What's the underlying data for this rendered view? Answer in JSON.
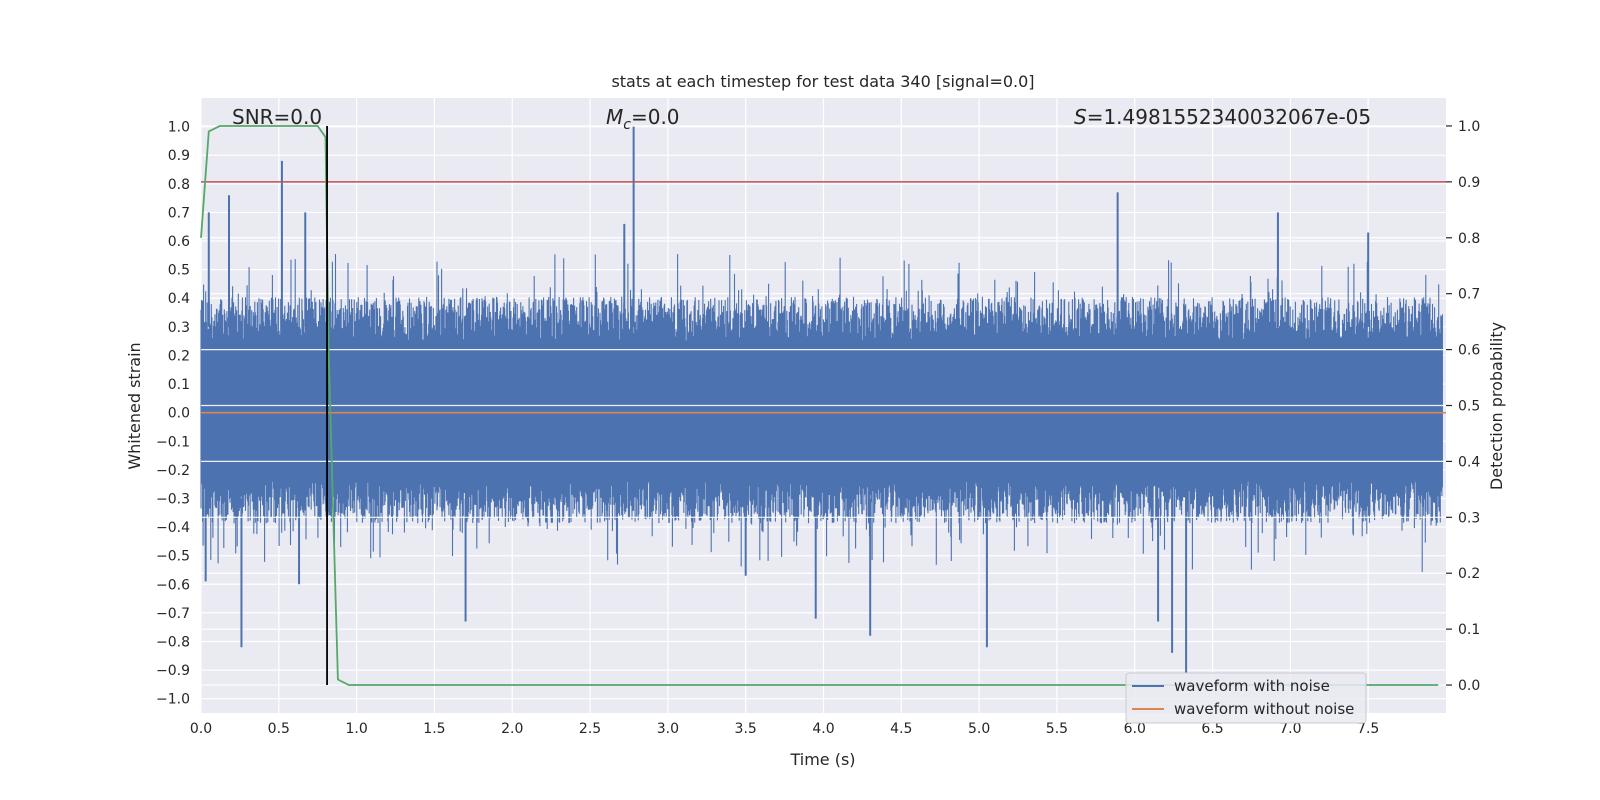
{
  "chart_data": {
    "type": "line",
    "title": "stats at each timestep for test data 340 [signal=0.0]",
    "xlabel": "Time (s)",
    "ylabel": "Whitened strain",
    "ylabel_right": "Detection probability",
    "xlim": [
      0.0,
      8.0
    ],
    "ylim": [
      -1.05,
      1.1
    ],
    "ylim_right": [
      -0.05,
      1.05
    ],
    "xticks": [
      0.0,
      0.5,
      1.0,
      1.5,
      2.0,
      2.5,
      3.0,
      3.5,
      4.0,
      4.5,
      5.0,
      5.5,
      6.0,
      6.5,
      7.0,
      7.5
    ],
    "xtick_labels": [
      "0.0",
      "0.5",
      "1.0",
      "1.5",
      "2.0",
      "2.5",
      "3.0",
      "3.5",
      "4.0",
      "4.5",
      "5.0",
      "5.5",
      "6.0",
      "6.5",
      "7.0",
      "7.5"
    ],
    "yticks": [
      1.0,
      0.9,
      0.8,
      0.7,
      0.6,
      0.5,
      0.4,
      0.3,
      0.2,
      0.1,
      0.0,
      -0.1,
      -0.2,
      -0.3,
      -0.4,
      -0.5,
      -0.6,
      -0.7,
      -0.8,
      -0.9,
      -1.0
    ],
    "ytick_labels": [
      "1.0",
      "0.9",
      "0.8",
      "0.7",
      "0.6",
      "0.5",
      "0.4",
      "0.3",
      "0.2",
      "0.1",
      "0.0",
      "−0.1",
      "−0.2",
      "−0.3",
      "−0.4",
      "−0.5",
      "−0.6",
      "−0.7",
      "−0.8",
      "−0.9",
      "−1.0"
    ],
    "yticks_right": [
      1.0,
      0.9,
      0.8,
      0.7,
      0.6,
      0.5,
      0.4,
      0.3,
      0.2,
      0.1,
      0.0
    ],
    "ytick_labels_right": [
      "1.0",
      "0.9",
      "0.8",
      "0.7",
      "0.6",
      "0.5",
      "0.4",
      "0.3",
      "0.2",
      "0.1",
      "0.0"
    ],
    "annotations": {
      "snr": "SNR=0.0",
      "mc_symbol": "M",
      "mc_sub": "c",
      "mc_value": "=0.0",
      "s_symbol": "S",
      "s_value": "=1.4981552340032067e-05"
    },
    "series": [
      {
        "name": "waveform with noise",
        "color": "#4c72b0",
        "axis": "left",
        "kind": "noise",
        "typical_band": [
          -0.43,
          0.45
        ],
        "spikes": [
          {
            "x": 2.78,
            "y": 1.0
          },
          {
            "x": 0.52,
            "y": 0.88
          },
          {
            "x": 0.18,
            "y": 0.76
          },
          {
            "x": 5.89,
            "y": 0.77
          },
          {
            "x": 0.67,
            "y": 0.7
          },
          {
            "x": 6.92,
            "y": 0.7
          },
          {
            "x": 0.05,
            "y": 0.7
          },
          {
            "x": 7.5,
            "y": 0.63
          },
          {
            "x": 2.72,
            "y": 0.66
          },
          {
            "x": 0.26,
            "y": -0.82
          },
          {
            "x": 6.33,
            "y": -0.91
          },
          {
            "x": 6.24,
            "y": -0.84
          },
          {
            "x": 5.05,
            "y": -0.82
          },
          {
            "x": 4.3,
            "y": -0.78
          },
          {
            "x": 0.63,
            "y": -0.6
          },
          {
            "x": 0.03,
            "y": -0.59
          },
          {
            "x": 1.7,
            "y": -0.73
          },
          {
            "x": 3.95,
            "y": -0.72
          },
          {
            "x": 6.15,
            "y": -0.73
          },
          {
            "x": 3.5,
            "y": -0.57
          }
        ]
      },
      {
        "name": "waveform without noise",
        "color": "#dd8452",
        "axis": "left",
        "x": [
          0.0,
          8.0
        ],
        "y": [
          0.0,
          0.0
        ]
      },
      {
        "name": "detection probability",
        "color": "#55a868",
        "axis": "right",
        "x": [
          0.0,
          0.05,
          0.12,
          0.2,
          0.3,
          0.5,
          0.7,
          0.75,
          0.8,
          0.82,
          0.88,
          0.95,
          1.5,
          3.0,
          5.0,
          7.0,
          7.95
        ],
        "y": [
          0.8,
          0.99,
          1.0,
          1.0,
          1.0,
          1.0,
          1.0,
          1.0,
          0.98,
          0.6,
          0.01,
          0.0,
          0.0,
          0.0,
          0.0,
          0.0,
          0.0
        ]
      }
    ],
    "threshold": {
      "axis": "right",
      "value": 0.9,
      "color": "#c44e52"
    },
    "event_line": {
      "x": 0.81,
      "y_from": 0.0,
      "y_to": 1.0,
      "axis": "right",
      "color": "#000000"
    },
    "legend": {
      "position": "lower-right",
      "entries": [
        {
          "label": "waveform with noise",
          "color": "#4c72b0"
        },
        {
          "label": "waveform without noise",
          "color": "#dd8452"
        }
      ]
    }
  }
}
